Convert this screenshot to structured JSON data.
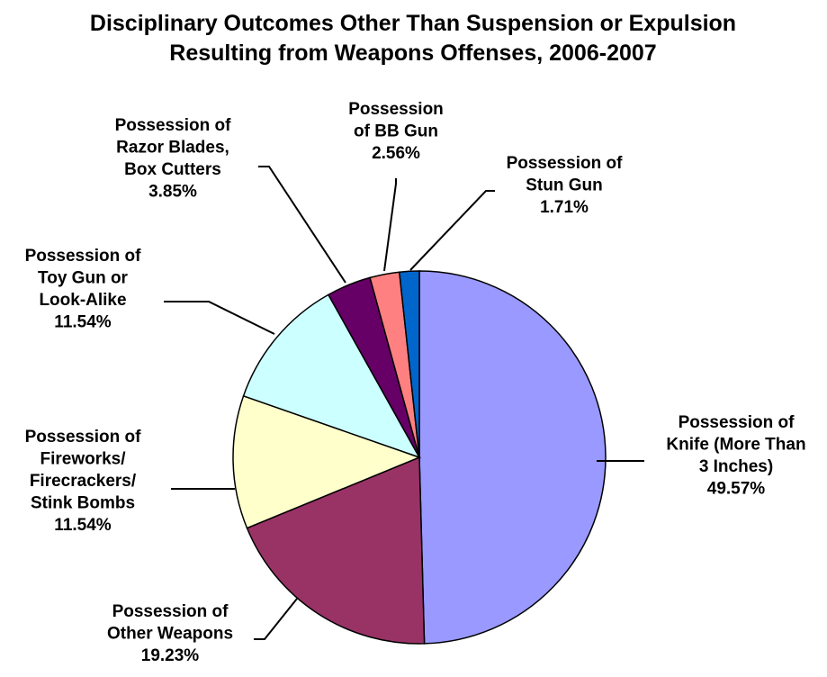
{
  "chart_data": {
    "type": "pie",
    "title_lines": [
      "Disciplinary Outcomes Other Than Suspension or Expulsion",
      "Resulting from Weapons Offenses, 2006-2007"
    ],
    "slices": [
      {
        "label_lines": [
          "Possession of",
          "Knife (More Than",
          "3 Inches)"
        ],
        "value": 49.57,
        "value_label": "49.57%",
        "color": "#9999ff"
      },
      {
        "label_lines": [
          "Possession of",
          "Other Weapons"
        ],
        "value": 19.23,
        "value_label": "19.23%",
        "color": "#993366"
      },
      {
        "label_lines": [
          "Possession of",
          "Fireworks/",
          "Firecrackers/",
          "Stink Bombs"
        ],
        "value": 11.54,
        "value_label": "11.54%",
        "color": "#ffffcc"
      },
      {
        "label_lines": [
          "Possession of",
          "Toy Gun or",
          "Look-Alike"
        ],
        "value": 11.54,
        "value_label": "11.54%",
        "color": "#ccffff"
      },
      {
        "label_lines": [
          "Possession of",
          "Razor Blades,",
          "Box Cutters"
        ],
        "value": 3.85,
        "value_label": "3.85%",
        "color": "#660066"
      },
      {
        "label_lines": [
          "Possession",
          "of BB Gun"
        ],
        "value": 2.56,
        "value_label": "2.56%",
        "color": "#ff8080"
      },
      {
        "label_lines": [
          "Possession of",
          "Stun Gun"
        ],
        "value": 1.71,
        "value_label": "1.71%",
        "color": "#0066cc"
      }
    ]
  }
}
